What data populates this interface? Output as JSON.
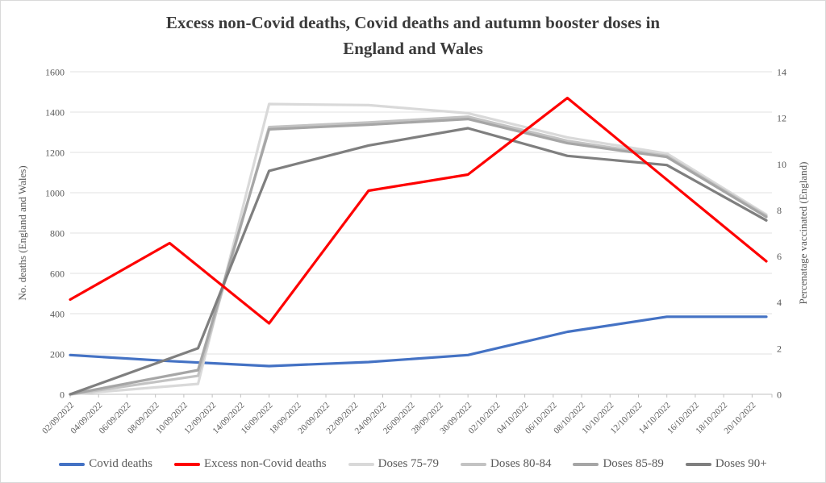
{
  "title_line1": "Excess non-Covid deaths, Covid deaths and autumn booster doses in",
  "title_line2": "England and Wales",
  "chart_data": {
    "type": "line",
    "title": "Excess non-Covid deaths, Covid deaths and autumn booster doses in England and Wales",
    "left_axis": {
      "label": "No. deaths (England and Wales)",
      "min": 0,
      "max": 1600,
      "tick_labels": [
        "0",
        "200",
        "400",
        "600",
        "800",
        "1000",
        "1200",
        "1400",
        "1600"
      ]
    },
    "right_axis": {
      "label": "Percenatage vaccinated (England)",
      "min": 0,
      "max": 14,
      "tick_labels": [
        "0",
        "2",
        "4",
        "6",
        "8",
        "10",
        "12",
        "14"
      ]
    },
    "x_axis": {
      "labels": [
        "02/09/2022",
        "04/09/2022",
        "06/09/2022",
        "08/09/2022",
        "10/09/2022",
        "12/09/2022",
        "14/09/2022",
        "16/09/2022",
        "18/09/2022",
        "20/09/2022",
        "22/09/2022",
        "24/09/2022",
        "26/09/2022",
        "28/09/2022",
        "30/09/2022",
        "02/10/2022",
        "04/10/2022",
        "06/10/2022",
        "08/10/2022",
        "10/10/2022",
        "12/10/2022",
        "14/10/2022",
        "16/10/2022",
        "18/10/2022",
        "20/10/2022"
      ],
      "label_step_days": 2,
      "total_days": 49,
      "grid": "horizontal-only",
      "legend_position": "bottom"
    },
    "series": [
      {
        "name": "Covid deaths",
        "axis": "left",
        "color": "#4472c4",
        "points": [
          [
            0,
            195
          ],
          [
            7,
            165
          ],
          [
            14,
            140
          ],
          [
            21,
            160
          ],
          [
            28,
            195
          ],
          [
            35,
            310
          ],
          [
            42,
            385
          ],
          [
            49,
            385
          ]
        ]
      },
      {
        "name": "Excess non-Covid deaths",
        "axis": "left",
        "color": "#fe0000",
        "points": [
          [
            0,
            470
          ],
          [
            7,
            750
          ],
          [
            14,
            352
          ],
          [
            21,
            1010
          ],
          [
            28,
            1090
          ],
          [
            35,
            1470
          ],
          [
            42,
            1065
          ],
          [
            49,
            660
          ]
        ]
      },
      {
        "name": "Doses 75-79",
        "axis": "right",
        "color": "#d9d9d9",
        "points": [
          [
            0,
            0
          ],
          [
            9,
            0.45
          ],
          [
            14,
            12.6
          ],
          [
            21,
            12.55
          ],
          [
            28,
            12.2
          ],
          [
            35,
            11.15
          ],
          [
            42,
            10.45
          ],
          [
            49,
            7.8
          ]
        ]
      },
      {
        "name": "Doses 80-84",
        "axis": "right",
        "color": "#c3c3c3",
        "points": [
          [
            0,
            0
          ],
          [
            9,
            0.8
          ],
          [
            14,
            11.6
          ],
          [
            21,
            11.8
          ],
          [
            28,
            12.05
          ],
          [
            35,
            11.0
          ],
          [
            42,
            10.35
          ],
          [
            49,
            7.75
          ]
        ]
      },
      {
        "name": "Doses 85-89",
        "axis": "right",
        "color": "#a6a6a6",
        "points": [
          [
            0,
            0
          ],
          [
            9,
            1.05
          ],
          [
            14,
            11.5
          ],
          [
            21,
            11.7
          ],
          [
            28,
            11.95
          ],
          [
            35,
            10.9
          ],
          [
            42,
            10.3
          ],
          [
            49,
            7.7
          ]
        ]
      },
      {
        "name": "Doses 90+",
        "axis": "right",
        "color": "#7f7f7f",
        "points": [
          [
            0,
            0
          ],
          [
            9,
            2.0
          ],
          [
            14,
            9.7
          ],
          [
            21,
            10.8
          ],
          [
            28,
            11.55
          ],
          [
            35,
            10.35
          ],
          [
            42,
            9.95
          ],
          [
            49,
            7.55
          ]
        ]
      }
    ]
  }
}
